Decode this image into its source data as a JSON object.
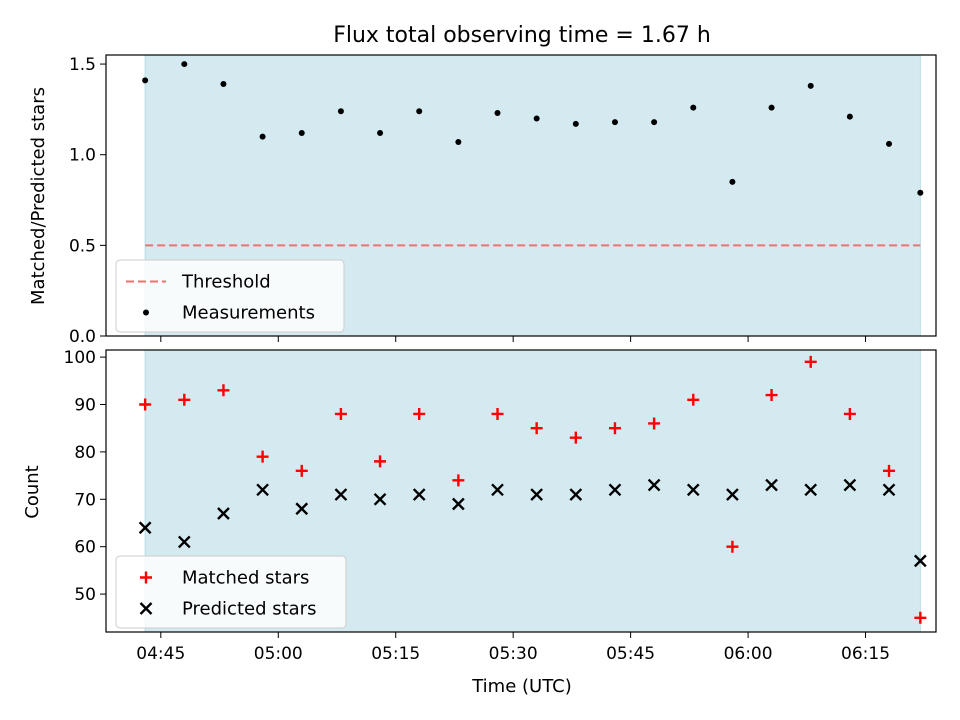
{
  "chart_data": [
    {
      "type": "scatter",
      "title": "Flux total observing time = 1.67 h",
      "xlabel": "",
      "ylabel": "Matched/Predicted stars",
      "ylim": [
        0,
        1.55
      ],
      "yticks": [
        "0.0",
        "0.5",
        "1.0",
        "1.5"
      ],
      "x_axis": "time (UTC), shared with lower panel, tick labels hidden",
      "shaded_span": [
        "04:43",
        "06:22"
      ],
      "shade_color": "#d4eaf0",
      "legend_position": "lower-left",
      "threshold": {
        "name": "Threshold",
        "value": 0.5,
        "style": "dashed",
        "color": "#f07070"
      },
      "series": [
        {
          "name": "Measurements",
          "marker": "dot",
          "color": "#000000",
          "x": [
            "04:43",
            "04:48",
            "04:53",
            "04:58",
            "05:03",
            "05:08",
            "05:13",
            "05:18",
            "05:23",
            "05:28",
            "05:33",
            "05:38",
            "05:43",
            "05:48",
            "05:53",
            "05:58",
            "06:03",
            "06:08",
            "06:13",
            "06:18",
            "06:22"
          ],
          "values": [
            1.41,
            1.5,
            1.39,
            1.1,
            1.12,
            1.24,
            1.12,
            1.24,
            1.07,
            1.23,
            1.2,
            1.17,
            1.18,
            1.18,
            1.26,
            0.85,
            1.26,
            1.38,
            1.21,
            1.06,
            0.79
          ]
        }
      ]
    },
    {
      "type": "scatter",
      "title": "",
      "xlabel": "Time (UTC)",
      "ylabel": "Count",
      "ylim": [
        42,
        101.5
      ],
      "yticks": [
        "50",
        "60",
        "70",
        "80",
        "90",
        "100"
      ],
      "xlim": [
        "04:38",
        "06:24"
      ],
      "xticks": [
        "04:45",
        "05:00",
        "05:15",
        "05:30",
        "05:45",
        "06:00",
        "06:15"
      ],
      "shaded_span": [
        "04:43",
        "06:22"
      ],
      "shade_color": "#d4eaf0",
      "legend_position": "lower-left",
      "series": [
        {
          "name": "Matched stars",
          "marker": "plus",
          "color": "#ff0000",
          "x": [
            "04:43",
            "04:48",
            "04:53",
            "04:58",
            "05:03",
            "05:08",
            "05:13",
            "05:18",
            "05:23",
            "05:28",
            "05:33",
            "05:38",
            "05:43",
            "05:48",
            "05:53",
            "05:58",
            "06:03",
            "06:08",
            "06:13",
            "06:18",
            "06:22"
          ],
          "values": [
            90,
            91,
            93,
            79,
            76,
            88,
            78,
            88,
            74,
            88,
            85,
            83,
            85,
            86,
            91,
            60,
            92,
            99,
            88,
            76,
            45
          ]
        },
        {
          "name": "Predicted stars",
          "marker": "x",
          "color": "#000000",
          "x": [
            "04:43",
            "04:48",
            "04:53",
            "04:58",
            "05:03",
            "05:08",
            "05:13",
            "05:18",
            "05:23",
            "05:28",
            "05:33",
            "05:38",
            "05:43",
            "05:48",
            "05:53",
            "05:58",
            "06:03",
            "06:08",
            "06:13",
            "06:18",
            "06:22"
          ],
          "values": [
            64,
            61,
            67,
            72,
            68,
            71,
            70,
            71,
            69,
            72,
            71,
            71,
            72,
            73,
            72,
            71,
            73,
            72,
            73,
            72,
            57
          ]
        }
      ]
    }
  ]
}
